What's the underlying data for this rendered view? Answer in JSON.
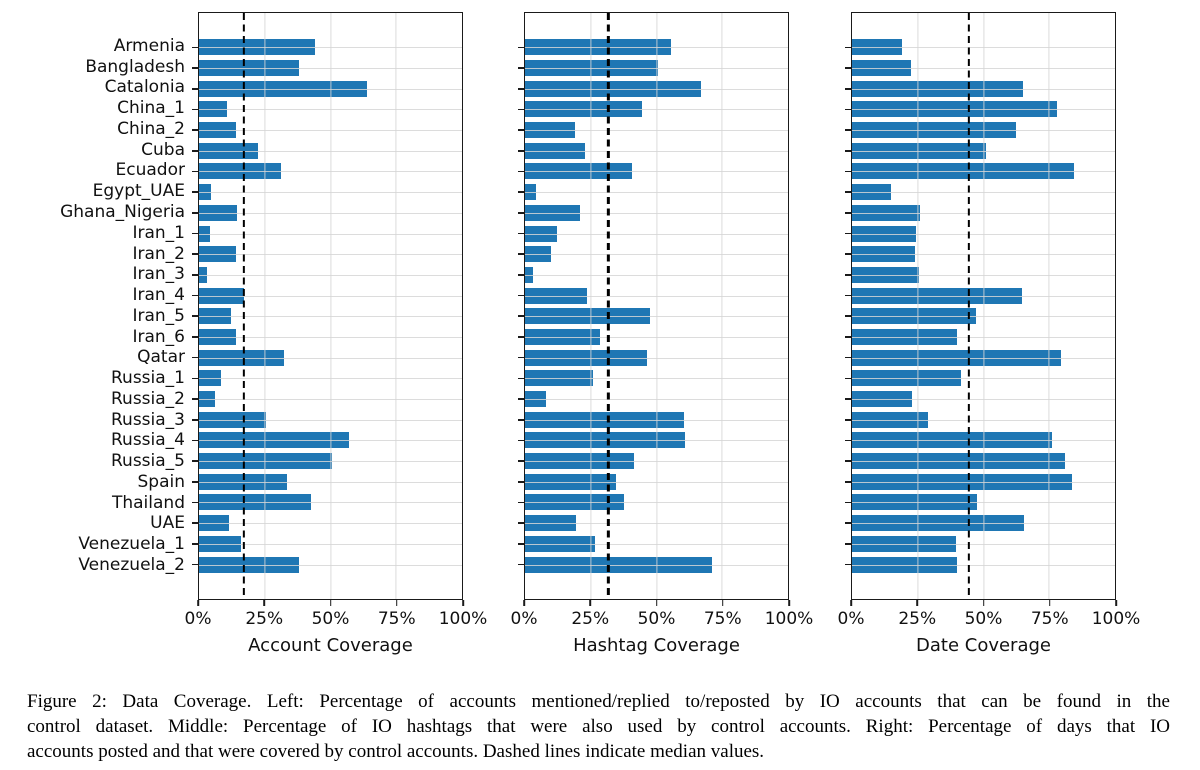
{
  "figure": {
    "caption_lines": [
      "Figure 2: Data Coverage. Left: Percentage of accounts mentioned/replied to/reposted by IO accounts that can be found in the",
      "control dataset. Middle: Percentage of IO hashtags that were also used by control accounts. Right: Percentage of days that IO",
      "accounts posted and that were covered by control accounts. Dashed lines indicate median values."
    ]
  },
  "colors": {
    "bar_fill": "#1f77b4",
    "axis": "#1a1a1a",
    "gridline": "#d6d6d6",
    "median_dash": "#000000"
  },
  "chart_data": {
    "type": "bar",
    "orientation": "horizontal",
    "grid": true,
    "xlim": [
      0,
      100
    ],
    "xticks": [
      "0%",
      "25%",
      "50%",
      "75%",
      "100%"
    ],
    "xtick_values": [
      0,
      25,
      50,
      75,
      100
    ],
    "vgrid_values": [
      25,
      50,
      75
    ],
    "categories": [
      "Armenia",
      "Bangladesh",
      "Catalonia",
      "China_1",
      "China_2",
      "Cuba",
      "Ecuador",
      "Egypt_UAE",
      "Ghana_Nigeria",
      "Iran_1",
      "Iran_2",
      "Iran_3",
      "Iran_4",
      "Iran_5",
      "Iran_6",
      "Qatar",
      "Russia_1",
      "Russia_2",
      "Russia_3",
      "Russia_4",
      "Russia_5",
      "Spain",
      "Thailand",
      "UAE",
      "Venezuela_1",
      "Venezuela_2"
    ],
    "series": [
      {
        "name": "Account Coverage",
        "values": [
          44,
          38,
          64,
          10.5,
          14,
          22.5,
          31,
          4.5,
          14.5,
          4,
          14,
          3,
          17,
          12,
          14,
          32.5,
          8.5,
          6,
          25.5,
          57,
          50.5,
          33.5,
          42.5,
          11.5,
          16,
          38
        ],
        "median_line": 17
      },
      {
        "name": "Hashtag Coverage",
        "values": [
          55.5,
          50.5,
          67,
          44.5,
          19,
          23,
          40.5,
          4,
          21,
          12,
          10,
          3,
          23.5,
          47.5,
          28.5,
          46.5,
          26,
          8,
          60.5,
          61,
          41.5,
          34.5,
          37.5,
          19.5,
          26.5,
          71
        ],
        "median_line": 31.7
      },
      {
        "name": "Date Coverage",
        "values": [
          19,
          22.5,
          65,
          78,
          62.5,
          51,
          84.5,
          15,
          26,
          24.5,
          24,
          25.5,
          64.5,
          47,
          40,
          79.5,
          41.5,
          23,
          29,
          76,
          81,
          83.5,
          47.5,
          65.5,
          39.5,
          40
        ],
        "median_line": 44.4
      }
    ]
  }
}
